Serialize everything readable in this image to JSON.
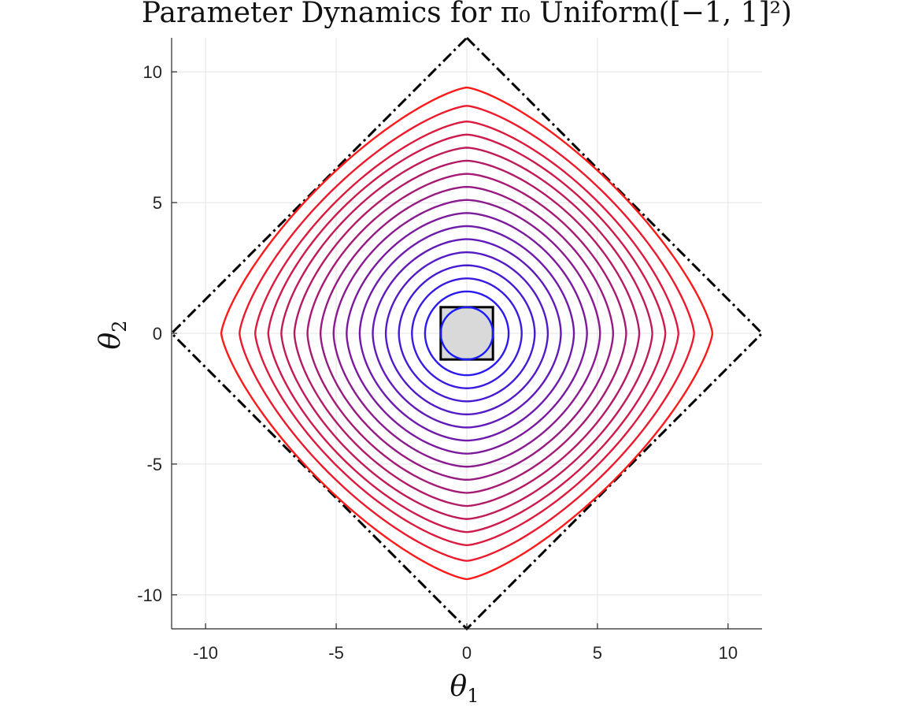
{
  "chart_data": {
    "type": "line",
    "title": "Parameter Dynamics for π₀ Uniform([−1, 1]²)",
    "xlabel": {
      "base": "θ",
      "sub": "1"
    },
    "ylabel": {
      "base": "θ",
      "sub": "2"
    },
    "xlim": [
      -11.3,
      11.3
    ],
    "ylim": [
      -11.3,
      11.3
    ],
    "xticks": [
      -10,
      -5,
      0,
      5,
      10
    ],
    "yticks": [
      -10,
      -5,
      0,
      5,
      10
    ],
    "xtick_labels": [
      "-10",
      "-5",
      "0",
      "5",
      "10"
    ],
    "ytick_labels": [
      "-10",
      "-5",
      "0",
      "5",
      "10"
    ],
    "grid": true,
    "contours": {
      "radii": [
        1.0,
        1.6,
        2.1,
        2.6,
        3.1,
        3.6,
        4.1,
        4.6,
        5.1,
        5.6,
        6.1,
        6.6,
        7.1,
        7.6,
        8.1,
        8.7,
        9.4
      ],
      "color_start": "#1a1aff",
      "color_end": "#ff1a1a"
    },
    "bound_diamond": {
      "vertex": 11.3,
      "color": "#000000",
      "style": "dash-dot"
    },
    "initial_support_square": {
      "half_width": 1,
      "fill": "#d9d9d9",
      "stroke": "#000000"
    }
  }
}
